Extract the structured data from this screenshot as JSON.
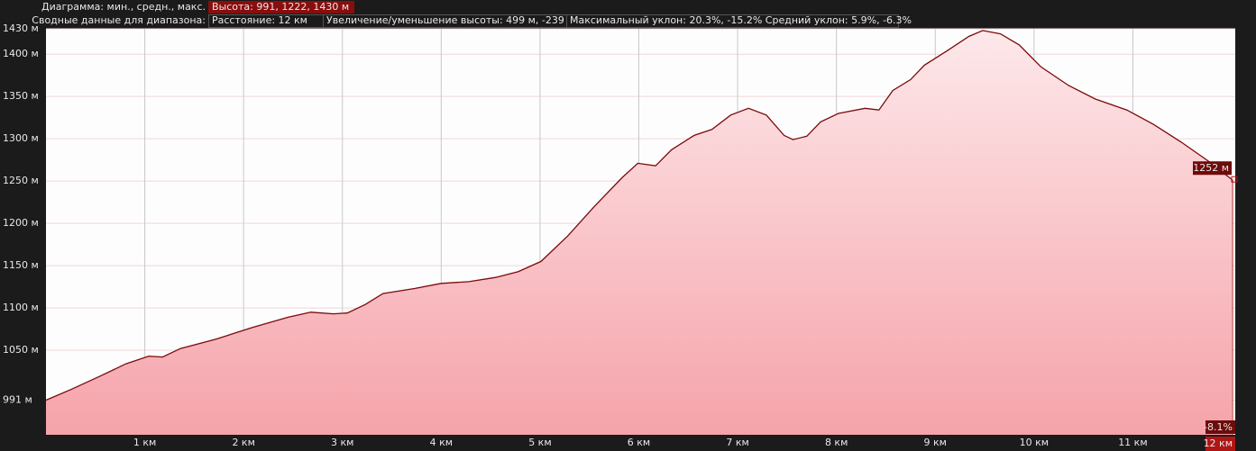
{
  "header": {
    "chart_label": "Диаграмма: мин., средн., макс.",
    "elevation": "Высота: 991, 1222, 1430 м",
    "summary_label": "Сводные данные для диапазона:",
    "distance": "Расстояние: 12 км",
    "gain_loss": "Увеличение/уменьшение высоты: 499 м, -239 м",
    "slope": "Максимальный уклон: 20.3%, -15.2% Средний уклон: 5.9%, -6.3%"
  },
  "chart_data": {
    "type": "area",
    "color": "#7a0a0a",
    "x": [
      0,
      0.26,
      0.54,
      0.81,
      1.04,
      1.18,
      1.36,
      1.72,
      2.09,
      2.45,
      2.68,
      2.91,
      3.05,
      3.23,
      3.41,
      3.73,
      4.0,
      4.28,
      4.55,
      4.78,
      5.01,
      5.28,
      5.55,
      5.83,
      5.99,
      6.17,
      6.33,
      6.56,
      6.74,
      6.93,
      7.11,
      7.29,
      7.47,
      7.56,
      7.7,
      7.84,
      8.02,
      8.29,
      8.43,
      8.57,
      8.75,
      8.89,
      9.12,
      9.34,
      9.48,
      9.66,
      9.85,
      10.07,
      10.35,
      10.62,
      10.94,
      11.21,
      11.49,
      11.76,
      12.0
    ],
    "values": [
      991,
      1004,
      1019,
      1034,
      1043,
      1042,
      1052,
      1063,
      1077,
      1089,
      1095,
      1093,
      1094,
      1104,
      1117,
      1123,
      1129,
      1131,
      1136,
      1143,
      1155,
      1185,
      1220,
      1254,
      1271,
      1268,
      1287,
      1304,
      1311,
      1328,
      1336,
      1328,
      1304,
      1299,
      1303,
      1320,
      1330,
      1336,
      1334,
      1357,
      1370,
      1387,
      1404,
      1421,
      1428,
      1424,
      1411,
      1385,
      1363,
      1347,
      1334,
      1317,
      1296,
      1274,
      1252
    ],
    "xlim": [
      0,
      12
    ],
    "ylim": [
      950,
      1430
    ],
    "xticks": [
      {
        "value": 1,
        "label": "1 км"
      },
      {
        "value": 2,
        "label": "2 км"
      },
      {
        "value": 3,
        "label": "3 км"
      },
      {
        "value": 4,
        "label": "4 км"
      },
      {
        "value": 5,
        "label": "5 км"
      },
      {
        "value": 6,
        "label": "6 км"
      },
      {
        "value": 7,
        "label": "7 км"
      },
      {
        "value": 8,
        "label": "8 км"
      },
      {
        "value": 9,
        "label": "9 км"
      },
      {
        "value": 10,
        "label": "10 км"
      },
      {
        "value": 11,
        "label": "11 км"
      }
    ],
    "yticks": [
      {
        "value": 991,
        "label": "991 м"
      },
      {
        "value": 1050,
        "label": "1050 м"
      },
      {
        "value": 1100,
        "label": "1100 м"
      },
      {
        "value": 1150,
        "label": "1150 м"
      },
      {
        "value": 1200,
        "label": "1200 м"
      },
      {
        "value": 1250,
        "label": "1250 м"
      },
      {
        "value": 1300,
        "label": "1300 м"
      },
      {
        "value": 1350,
        "label": "1350 м"
      },
      {
        "value": 1400,
        "label": "1400 м"
      },
      {
        "value": 1430,
        "label": "1430 м"
      }
    ],
    "grid": true,
    "annotations": {
      "current_value": "1252 м",
      "current_slope": "-8.1%",
      "current_position": "12 км"
    }
  }
}
